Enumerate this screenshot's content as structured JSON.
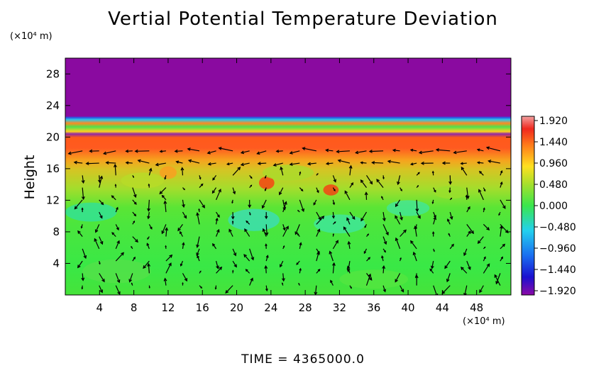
{
  "chart_data": {
    "type": "heatmap",
    "title": "Vertial Potential Temperature Deviation",
    "ylabel": "Height",
    "y_unit": "(×10⁴ m)",
    "x_unit": "(×10⁴ m)",
    "xlim": [
      0,
      52
    ],
    "ylim": [
      0,
      30
    ],
    "x_ticks": [
      4,
      8,
      12,
      16,
      20,
      24,
      28,
      32,
      36,
      40,
      44,
      48
    ],
    "y_ticks": [
      4,
      8,
      12,
      16,
      20,
      24,
      28
    ],
    "colorbar": {
      "ticks": [
        "1.920",
        "1.440",
        "0.960",
        "0.480",
        "0.000",
        "−0.480",
        "−0.960",
        "−1.440",
        "−1.920"
      ],
      "range": [
        -1.92,
        1.92
      ]
    },
    "overlay": "wind vector arrows",
    "layers": [
      {
        "from_height": 22.5,
        "to_height": 30,
        "value": -1.92
      },
      {
        "from_height": 20,
        "to_height": 22.5,
        "value": "mixed"
      },
      {
        "from_height": 16,
        "to_height": 20,
        "value": 1.2
      },
      {
        "from_height": 12,
        "to_height": 16,
        "value": 0.4
      },
      {
        "from_height": 0,
        "to_height": 12,
        "value": 0.0
      }
    ]
  },
  "footer": {
    "time_text": "TIME  =  4365000.0"
  }
}
